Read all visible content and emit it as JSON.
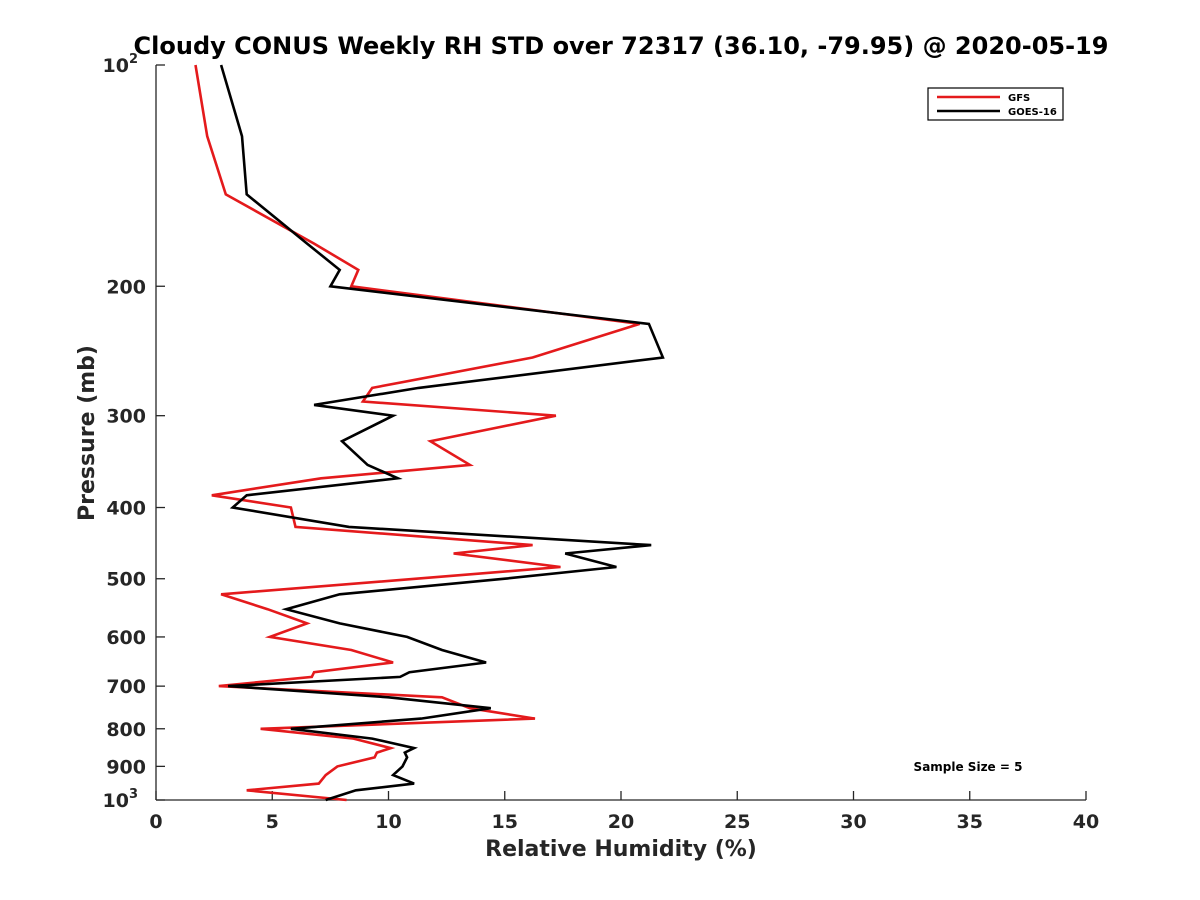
{
  "chart_data": {
    "type": "line",
    "title": "Cloudy CONUS Weekly RH STD over 72317 (36.10, -79.95) @ 2020-05-19",
    "xlabel": "Relative Humidity (%)",
    "ylabel": "Pressure (mb)",
    "xlim": [
      0,
      40
    ],
    "ylim": [
      100,
      1000
    ],
    "y_scale": "log",
    "y_reversed": true,
    "grid": false,
    "legend_position": "top-right",
    "x_ticks": [
      "0",
      "5",
      "10",
      "15",
      "20",
      "25",
      "30",
      "35",
      "40"
    ],
    "y_ticks": [
      {
        "value": 100,
        "base": "10",
        "exp": "2"
      },
      {
        "value": 200,
        "label": "200"
      },
      {
        "value": 300,
        "label": "300"
      },
      {
        "value": 400,
        "label": "400"
      },
      {
        "value": 500,
        "label": "500"
      },
      {
        "value": 600,
        "label": "600"
      },
      {
        "value": 700,
        "label": "700"
      },
      {
        "value": 800,
        "label": "800"
      },
      {
        "value": 900,
        "label": "900"
      },
      {
        "value": 1000,
        "base": "10",
        "exp": "3"
      }
    ],
    "series": [
      {
        "name": "GFS",
        "color": "#e41a1c",
        "points": [
          [
            1.7,
            100
          ],
          [
            2.2,
            125
          ],
          [
            3.0,
            150
          ],
          [
            6.8,
            175
          ],
          [
            8.7,
            190
          ],
          [
            8.4,
            200
          ],
          [
            20.8,
            225
          ],
          [
            16.2,
            250
          ],
          [
            9.3,
            275
          ],
          [
            8.9,
            287
          ],
          [
            17.2,
            300
          ],
          [
            11.8,
            325
          ],
          [
            13.5,
            350
          ],
          [
            7.1,
            365
          ],
          [
            2.4,
            385
          ],
          [
            5.8,
            400
          ],
          [
            6.0,
            425
          ],
          [
            16.2,
            450
          ],
          [
            12.8,
            462
          ],
          [
            17.4,
            482
          ],
          [
            11.2,
            500
          ],
          [
            2.8,
            525
          ],
          [
            4.8,
            550
          ],
          [
            6.5,
            575
          ],
          [
            4.9,
            600
          ],
          [
            8.4,
            625
          ],
          [
            10.2,
            650
          ],
          [
            6.8,
            670
          ],
          [
            6.7,
            680
          ],
          [
            2.7,
            700
          ],
          [
            12.3,
            725
          ],
          [
            13.5,
            750
          ],
          [
            16.3,
            775
          ],
          [
            4.5,
            800
          ],
          [
            8.5,
            825
          ],
          [
            10.1,
            850
          ],
          [
            9.5,
            862
          ],
          [
            9.4,
            875
          ],
          [
            7.8,
            900
          ],
          [
            7.3,
            925
          ],
          [
            7.0,
            950
          ],
          [
            3.9,
            970
          ],
          [
            8.2,
            1000
          ]
        ]
      },
      {
        "name": "GOES-16",
        "color": "#000000",
        "points": [
          [
            2.8,
            100
          ],
          [
            3.7,
            125
          ],
          [
            3.9,
            150
          ],
          [
            6.5,
            175
          ],
          [
            7.9,
            190
          ],
          [
            7.5,
            200
          ],
          [
            21.2,
            225
          ],
          [
            21.8,
            250
          ],
          [
            11.3,
            275
          ],
          [
            6.8,
            290
          ],
          [
            10.2,
            300
          ],
          [
            8.0,
            325
          ],
          [
            9.1,
            350
          ],
          [
            10.4,
            365
          ],
          [
            3.9,
            385
          ],
          [
            3.3,
            400
          ],
          [
            8.3,
            425
          ],
          [
            21.3,
            450
          ],
          [
            17.6,
            462
          ],
          [
            19.8,
            482
          ],
          [
            15.0,
            500
          ],
          [
            7.9,
            525
          ],
          [
            5.6,
            550
          ],
          [
            7.9,
            575
          ],
          [
            10.8,
            600
          ],
          [
            12.3,
            625
          ],
          [
            14.2,
            650
          ],
          [
            10.9,
            670
          ],
          [
            10.5,
            680
          ],
          [
            3.1,
            700
          ],
          [
            10.0,
            725
          ],
          [
            14.4,
            750
          ],
          [
            11.4,
            775
          ],
          [
            5.8,
            800
          ],
          [
            9.3,
            825
          ],
          [
            11.1,
            850
          ],
          [
            10.7,
            862
          ],
          [
            10.8,
            875
          ],
          [
            10.6,
            900
          ],
          [
            10.2,
            925
          ],
          [
            11.1,
            950
          ],
          [
            8.6,
            970
          ],
          [
            7.3,
            1000
          ]
        ]
      }
    ],
    "annotation": "Sample Size = 5"
  }
}
